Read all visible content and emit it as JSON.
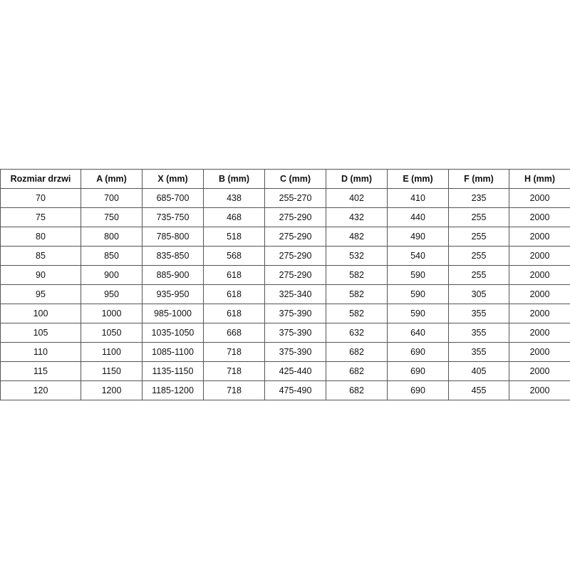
{
  "table": {
    "headers": [
      "Rozmiar drzwi",
      "A (mm)",
      "X (mm)",
      "B (mm)",
      "C (mm)",
      "D (mm)",
      "E (mm)",
      "F (mm)",
      "H (mm)"
    ],
    "rows": [
      [
        "70",
        "700",
        "685-700",
        "438",
        "255-270",
        "402",
        "410",
        "235",
        "2000"
      ],
      [
        "75",
        "750",
        "735-750",
        "468",
        "275-290",
        "432",
        "440",
        "255",
        "2000"
      ],
      [
        "80",
        "800",
        "785-800",
        "518",
        "275-290",
        "482",
        "490",
        "255",
        "2000"
      ],
      [
        "85",
        "850",
        "835-850",
        "568",
        "275-290",
        "532",
        "540",
        "255",
        "2000"
      ],
      [
        "90",
        "900",
        "885-900",
        "618",
        "275-290",
        "582",
        "590",
        "255",
        "2000"
      ],
      [
        "95",
        "950",
        "935-950",
        "618",
        "325-340",
        "582",
        "590",
        "305",
        "2000"
      ],
      [
        "100",
        "1000",
        "985-1000",
        "618",
        "375-390",
        "582",
        "590",
        "355",
        "2000"
      ],
      [
        "105",
        "1050",
        "1035-1050",
        "668",
        "375-390",
        "632",
        "640",
        "355",
        "2000"
      ],
      [
        "110",
        "1100",
        "1085-1100",
        "718",
        "375-390",
        "682",
        "690",
        "355",
        "2000"
      ],
      [
        "115",
        "1150",
        "1135-1150",
        "718",
        "425-440",
        "682",
        "690",
        "405",
        "2000"
      ],
      [
        "120",
        "1200",
        "1185-1200",
        "718",
        "475-490",
        "682",
        "690",
        "455",
        "2000"
      ]
    ]
  }
}
